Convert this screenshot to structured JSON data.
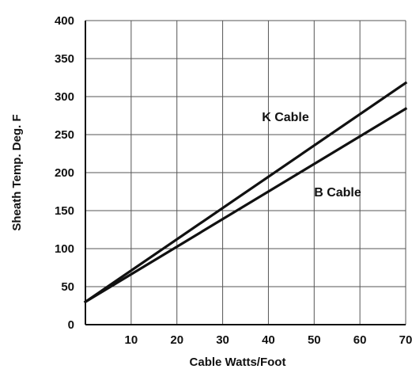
{
  "chart_data": {
    "type": "line",
    "xlabel": "Cable Watts/Foot",
    "ylabel": "Sheath Temp. Deg. F",
    "xlim": [
      0,
      70
    ],
    "ylim": [
      0,
      400
    ],
    "x_ticks": [
      "10",
      "20",
      "30",
      "40",
      "50",
      "60",
      "70"
    ],
    "y_ticks": [
      "0",
      "50",
      "100",
      "150",
      "200",
      "250",
      "300",
      "350",
      "400"
    ],
    "grid": true,
    "series": [
      {
        "name": "K Cable",
        "x": [
          0,
          70
        ],
        "y": [
          30,
          318
        ],
        "color": "#111111"
      },
      {
        "name": "B Cable",
        "x": [
          0,
          70
        ],
        "y": [
          30,
          284
        ],
        "color": "#111111"
      }
    ]
  }
}
